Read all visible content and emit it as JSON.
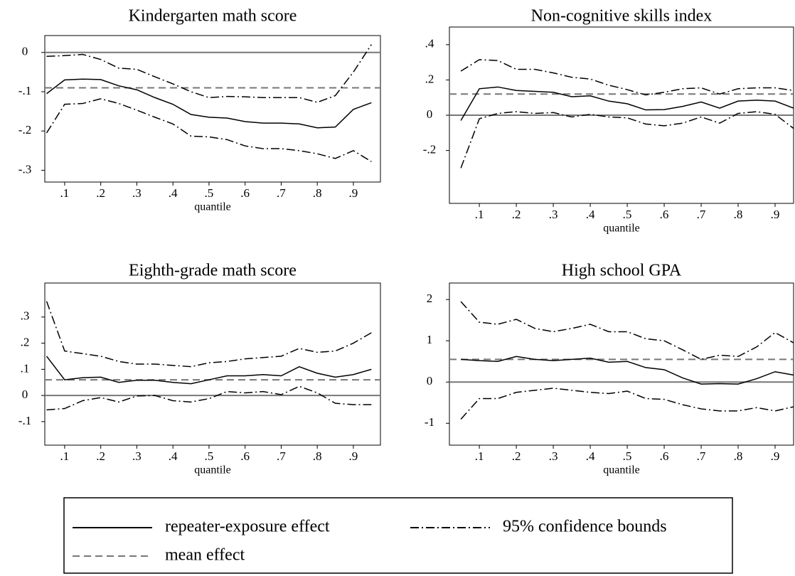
{
  "chart_data": [
    {
      "type": "line",
      "title": "Kindergarten math score",
      "xlabel": "quantile",
      "x": [
        0.05,
        0.1,
        0.15,
        0.2,
        0.25,
        0.3,
        0.35,
        0.4,
        0.45,
        0.5,
        0.55,
        0.6,
        0.65,
        0.7,
        0.75,
        0.8,
        0.85,
        0.9,
        0.95
      ],
      "xlim": [
        0.045,
        0.975
      ],
      "xticks": [
        {
          "value": 0.1,
          "label": ".1"
        },
        {
          "value": 0.2,
          "label": ".2"
        },
        {
          "value": 0.3,
          "label": ".3"
        },
        {
          "value": 0.4,
          "label": ".4"
        },
        {
          "value": 0.5,
          "label": ".5"
        },
        {
          "value": 0.6,
          "label": ".6"
        },
        {
          "value": 0.7,
          "label": ".7"
        },
        {
          "value": 0.8,
          "label": ".8"
        },
        {
          "value": 0.9,
          "label": ".9"
        }
      ],
      "ylim": [
        -0.33,
        0.043
      ],
      "yticks": [
        {
          "value": -0.3,
          "label": "-.3"
        },
        {
          "value": -0.2,
          "label": "-.2"
        },
        {
          "value": -0.1,
          "label": "-.1"
        },
        0
      ],
      "hline": 0,
      "mean": -0.09,
      "effect": [
        -0.105,
        -0.07,
        -0.068,
        -0.069,
        -0.085,
        -0.095,
        -0.115,
        -0.132,
        -0.158,
        -0.165,
        -0.167,
        -0.176,
        -0.18,
        -0.18,
        -0.182,
        -0.192,
        -0.19,
        -0.145,
        -0.128
      ],
      "ci_upper": [
        -0.01,
        -0.008,
        -0.005,
        -0.018,
        -0.04,
        -0.043,
        -0.062,
        -0.08,
        -0.1,
        -0.115,
        -0.112,
        -0.113,
        -0.115,
        -0.115,
        -0.115,
        -0.127,
        -0.11,
        -0.05,
        0.02
      ],
      "ci_lower": [
        -0.205,
        -0.132,
        -0.13,
        -0.118,
        -0.13,
        -0.147,
        -0.165,
        -0.182,
        -0.213,
        -0.215,
        -0.222,
        -0.238,
        -0.245,
        -0.245,
        -0.25,
        -0.258,
        -0.27,
        -0.25,
        -0.278
      ]
    },
    {
      "type": "line",
      "title": "Non-cognitive skills index",
      "xlabel": "quantile",
      "x": [
        0.05,
        0.1,
        0.15,
        0.2,
        0.25,
        0.3,
        0.35,
        0.4,
        0.45,
        0.5,
        0.55,
        0.6,
        0.65,
        0.7,
        0.75,
        0.8,
        0.85,
        0.9,
        0.95
      ],
      "xlim": [
        0.019,
        0.95
      ],
      "xticks": [
        {
          "value": 0.1,
          "label": ".1"
        },
        {
          "value": 0.2,
          "label": ".2"
        },
        {
          "value": 0.3,
          "label": ".3"
        },
        {
          "value": 0.4,
          "label": ".4"
        },
        {
          "value": 0.5,
          "label": ".5"
        },
        {
          "value": 0.6,
          "label": ".6"
        },
        {
          "value": 0.7,
          "label": ".7"
        },
        {
          "value": 0.8,
          "label": ".8"
        },
        {
          "value": 0.9,
          "label": ".9"
        }
      ],
      "ylim": [
        -0.5,
        0.5
      ],
      "yticks": [
        {
          "value": -0.2,
          "label": "-.2"
        },
        0,
        {
          "value": 0.2,
          "label": ".2"
        },
        {
          "value": 0.4,
          "label": ".4"
        }
      ],
      "hline": 0,
      "mean": 0.12,
      "effect": [
        -0.03,
        0.15,
        0.16,
        0.14,
        0.135,
        0.13,
        0.105,
        0.11,
        0.08,
        0.065,
        0.03,
        0.032,
        0.05,
        0.075,
        0.04,
        0.08,
        0.085,
        0.08,
        0.04
      ],
      "ci_upper": [
        0.25,
        0.315,
        0.31,
        0.26,
        0.26,
        0.24,
        0.215,
        0.205,
        0.17,
        0.145,
        0.115,
        0.13,
        0.15,
        0.155,
        0.12,
        0.15,
        0.155,
        0.155,
        0.14
      ],
      "ci_lower": [
        -0.3,
        -0.02,
        0.01,
        0.02,
        0.01,
        0.015,
        -0.01,
        0.005,
        -0.01,
        -0.015,
        -0.05,
        -0.06,
        -0.045,
        -0.01,
        -0.045,
        0.01,
        0.02,
        0.005,
        -0.075
      ]
    },
    {
      "type": "line",
      "title": "Eighth-grade math score",
      "xlabel": "quantile",
      "x": [
        0.05,
        0.1,
        0.15,
        0.2,
        0.25,
        0.3,
        0.35,
        0.4,
        0.45,
        0.5,
        0.55,
        0.6,
        0.65,
        0.7,
        0.75,
        0.8,
        0.85,
        0.9,
        0.95
      ],
      "xlim": [
        0.045,
        0.975
      ],
      "xticks": [
        {
          "value": 0.1,
          "label": ".1"
        },
        {
          "value": 0.2,
          "label": ".2"
        },
        {
          "value": 0.3,
          "label": ".3"
        },
        {
          "value": 0.4,
          "label": ".4"
        },
        {
          "value": 0.5,
          "label": ".5"
        },
        {
          "value": 0.6,
          "label": ".6"
        },
        {
          "value": 0.7,
          "label": ".7"
        },
        {
          "value": 0.8,
          "label": ".8"
        },
        {
          "value": 0.9,
          "label": ".9"
        }
      ],
      "ylim": [
        -0.19,
        0.43
      ],
      "yticks": [
        {
          "value": -0.1,
          "label": "-.1"
        },
        0,
        {
          "value": 0.1,
          "label": ".1"
        },
        {
          "value": 0.2,
          "label": ".2"
        },
        {
          "value": 0.3,
          "label": ".3"
        }
      ],
      "hline": 0,
      "mean": 0.06,
      "effect": [
        0.15,
        0.06,
        0.068,
        0.07,
        0.05,
        0.058,
        0.058,
        0.05,
        0.045,
        0.06,
        0.075,
        0.075,
        0.08,
        0.075,
        0.11,
        0.085,
        0.07,
        0.08,
        0.1
      ],
      "ci_upper": [
        0.36,
        0.17,
        0.16,
        0.15,
        0.13,
        0.12,
        0.12,
        0.115,
        0.11,
        0.125,
        0.13,
        0.14,
        0.145,
        0.15,
        0.18,
        0.165,
        0.17,
        0.2,
        0.24
      ],
      "ci_lower": [
        -0.055,
        -0.05,
        -0.02,
        -0.008,
        -0.025,
        -0.002,
        0.0,
        -0.02,
        -0.025,
        -0.012,
        0.015,
        0.01,
        0.015,
        0.003,
        0.035,
        0.01,
        -0.03,
        -0.035,
        -0.035
      ]
    },
    {
      "type": "line",
      "title": "High school GPA",
      "xlabel": "quantile",
      "x": [
        0.05,
        0.1,
        0.15,
        0.2,
        0.25,
        0.3,
        0.35,
        0.4,
        0.45,
        0.5,
        0.55,
        0.6,
        0.65,
        0.7,
        0.75,
        0.8,
        0.85,
        0.9,
        0.95
      ],
      "xlim": [
        0.019,
        0.95
      ],
      "xticks": [
        {
          "value": 0.1,
          "label": ".1"
        },
        {
          "value": 0.2,
          "label": ".2"
        },
        {
          "value": 0.3,
          "label": ".3"
        },
        {
          "value": 0.4,
          "label": ".4"
        },
        {
          "value": 0.5,
          "label": ".5"
        },
        {
          "value": 0.6,
          "label": ".6"
        },
        {
          "value": 0.7,
          "label": ".7"
        },
        {
          "value": 0.8,
          "label": ".8"
        },
        {
          "value": 0.9,
          "label": ".9"
        }
      ],
      "ylim": [
        -1.53,
        2.4
      ],
      "yticks": [
        -1,
        0,
        1,
        2
      ],
      "hline": 0,
      "mean": 0.55,
      "effect": [
        0.55,
        0.52,
        0.5,
        0.62,
        0.55,
        0.52,
        0.55,
        0.58,
        0.48,
        0.5,
        0.35,
        0.3,
        0.1,
        -0.05,
        -0.04,
        -0.05,
        0.08,
        0.25,
        0.17
      ],
      "ci_upper": [
        1.95,
        1.45,
        1.4,
        1.52,
        1.3,
        1.22,
        1.3,
        1.4,
        1.22,
        1.22,
        1.05,
        1.0,
        0.78,
        0.55,
        0.65,
        0.62,
        0.85,
        1.2,
        0.95
      ],
      "ci_lower": [
        -0.9,
        -0.4,
        -0.4,
        -0.25,
        -0.2,
        -0.15,
        -0.2,
        -0.25,
        -0.28,
        -0.22,
        -0.4,
        -0.42,
        -0.55,
        -0.65,
        -0.7,
        -0.7,
        -0.62,
        -0.7,
        -0.6
      ]
    }
  ],
  "legend": {
    "items": [
      {
        "name": "repeater-exposure effect",
        "color": "#000000",
        "dash": "none"
      },
      {
        "name": "95% confidence bounds",
        "color": "#000000",
        "dash": "12,4,2,4"
      },
      {
        "name": "mean effect",
        "color": "#777777",
        "dash": "10,6"
      }
    ],
    "hline_color": "#777777"
  }
}
